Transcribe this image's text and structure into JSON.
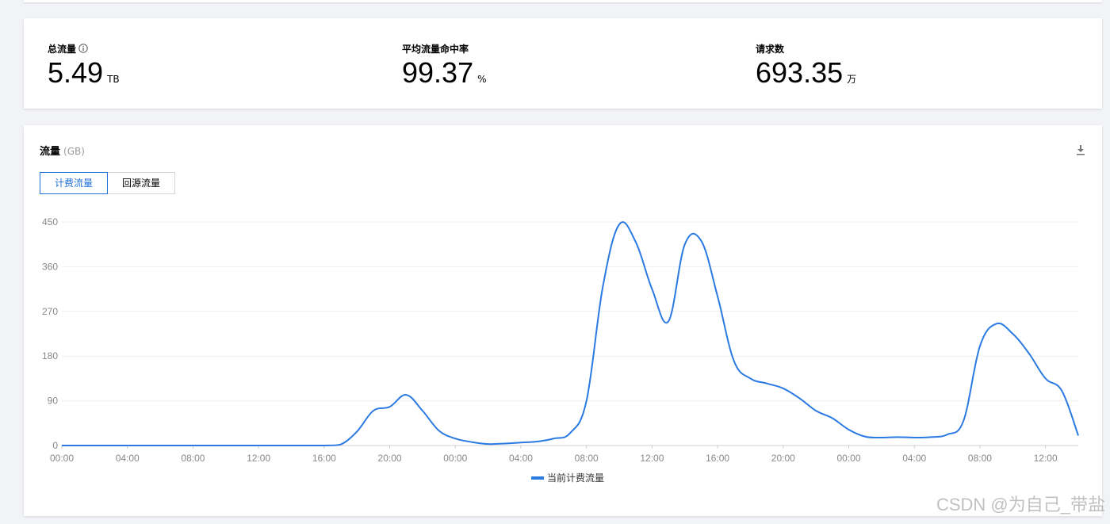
{
  "stats": [
    {
      "label": "总流量",
      "value": "5.49",
      "unit": "TB",
      "has_info": true
    },
    {
      "label": "平均流量命中率",
      "value": "99.37",
      "unit": "%",
      "has_info": false
    },
    {
      "label": "请求数",
      "value": "693.35",
      "unit": "万",
      "has_info": false
    }
  ],
  "chart_panel": {
    "title": "流量",
    "unit": "(GB)",
    "tabs": [
      {
        "label": "计费流量",
        "active": true
      },
      {
        "label": "回源流量",
        "active": false
      }
    ],
    "download_icon": "download-icon"
  },
  "chart_data": {
    "type": "line",
    "title": "流量",
    "ylabel": "",
    "xlabel": "",
    "ylim": [
      0,
      450
    ],
    "yticks": [
      0,
      90,
      180,
      270,
      360,
      450
    ],
    "x_tick_labels": [
      "00:00",
      "04:00",
      "08:00",
      "12:00",
      "16:00",
      "20:00",
      "00:00",
      "04:00",
      "08:00",
      "12:00",
      "16:00",
      "20:00",
      "00:00",
      "04:00",
      "08:00",
      "12:00"
    ],
    "x_range_hours": [
      0,
      62
    ],
    "grid": true,
    "legend_position": "bottom",
    "series": [
      {
        "name": "当前计费流量",
        "color": "#2a7ae2",
        "points": [
          [
            0,
            0
          ],
          [
            4,
            0
          ],
          [
            8,
            0
          ],
          [
            12,
            0
          ],
          [
            16,
            0
          ],
          [
            17,
            2
          ],
          [
            18,
            28
          ],
          [
            19,
            70
          ],
          [
            20,
            78
          ],
          [
            21,
            102
          ],
          [
            22,
            70
          ],
          [
            23,
            30
          ],
          [
            24,
            14
          ],
          [
            25,
            7
          ],
          [
            26,
            3
          ],
          [
            27,
            4
          ],
          [
            28,
            6
          ],
          [
            29,
            8
          ],
          [
            30,
            14
          ],
          [
            31,
            25
          ],
          [
            32,
            90
          ],
          [
            33,
            320
          ],
          [
            34,
            445
          ],
          [
            35,
            410
          ],
          [
            36,
            315
          ],
          [
            37,
            250
          ],
          [
            38,
            405
          ],
          [
            39,
            412
          ],
          [
            40,
            300
          ],
          [
            41,
            170
          ],
          [
            42,
            135
          ],
          [
            43,
            125
          ],
          [
            44,
            115
          ],
          [
            45,
            95
          ],
          [
            46,
            70
          ],
          [
            47,
            55
          ],
          [
            48,
            32
          ],
          [
            49,
            18
          ],
          [
            50,
            16
          ],
          [
            51,
            17
          ],
          [
            52,
            16
          ],
          [
            53,
            17
          ],
          [
            54,
            22
          ],
          [
            55,
            50
          ],
          [
            56,
            200
          ],
          [
            57,
            245
          ],
          [
            58,
            225
          ],
          [
            59,
            185
          ],
          [
            60,
            135
          ],
          [
            61,
            110
          ],
          [
            62,
            20
          ]
        ]
      }
    ]
  },
  "watermark": "CSDN @为自己_带盐"
}
